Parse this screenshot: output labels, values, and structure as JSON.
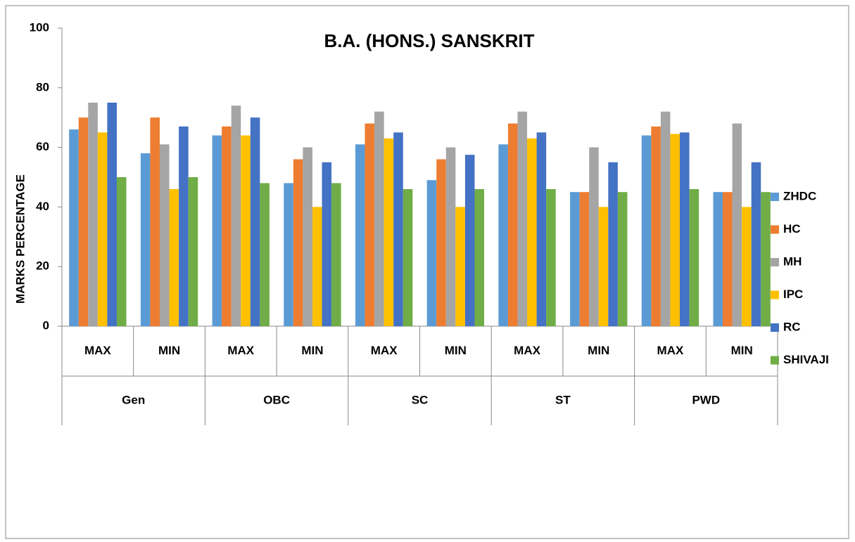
{
  "chart_data": {
    "type": "bar",
    "title": "B.A. (HONS.) SANSKRIT",
    "y_label": "MARKS PERCENTAGE",
    "categories": [
      "MAX",
      "MIN",
      "MAX",
      "MIN",
      "MAX",
      "MIN",
      "MAX",
      "MIN",
      "MAX",
      "MIN"
    ],
    "groups": [
      "Gen",
      "OBC",
      "SC",
      "ST",
      "PWD"
    ],
    "series": [
      {
        "name": "ZHDC",
        "color": "#5b9bd5",
        "values": [
          66,
          58,
          64,
          48,
          61,
          49,
          61,
          45,
          64,
          45
        ]
      },
      {
        "name": "HC",
        "color": "#ed7d31",
        "values": [
          70,
          70,
          67,
          56,
          68,
          56,
          68,
          45,
          67,
          45
        ]
      },
      {
        "name": "MH",
        "color": "#a5a5a5",
        "values": [
          75,
          61,
          74,
          60,
          72,
          60,
          72,
          60,
          72,
          68
        ]
      },
      {
        "name": "IPC",
        "color": "#ffc000",
        "values": [
          65,
          46,
          64,
          40,
          63,
          40,
          63,
          40,
          64.5,
          40
        ]
      },
      {
        "name": "RC",
        "color": "#4472c4",
        "values": [
          75,
          67,
          70,
          55,
          65,
          57.5,
          65,
          55,
          65,
          55
        ]
      },
      {
        "name": "SHIVAJI",
        "color": "#70ad47",
        "values": [
          50,
          50,
          48,
          48,
          46,
          46,
          46,
          45,
          46,
          45
        ]
      }
    ],
    "ylim": [
      0,
      100
    ],
    "yticks": [
      0,
      20,
      40,
      60,
      80,
      100
    ],
    "legend": "right"
  }
}
